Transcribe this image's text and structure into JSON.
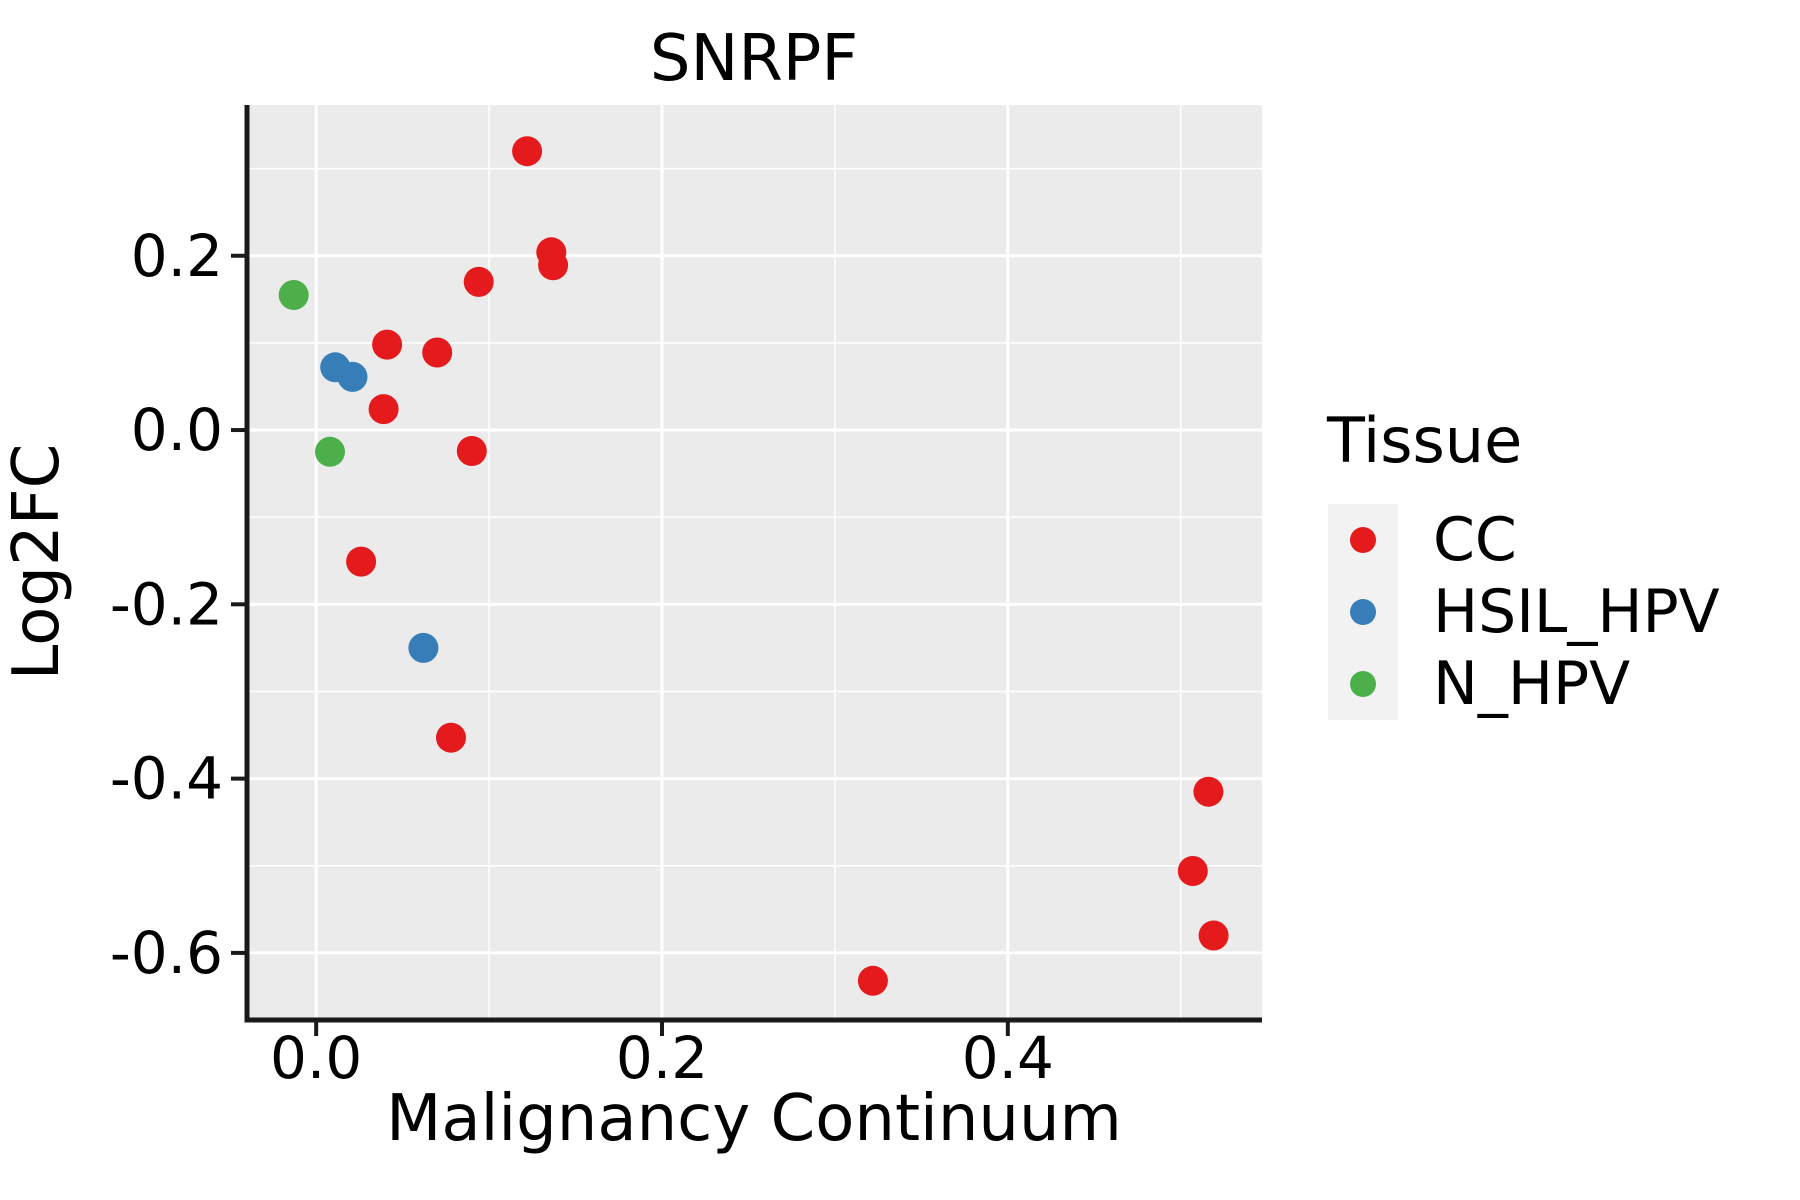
{
  "figure": {
    "title": "SNRPF"
  },
  "chart_data": {
    "type": "scatter",
    "title": "SNRPF",
    "xlabel": "Malignancy Continuum",
    "ylabel": "Log2FC",
    "xlim": [
      -0.04,
      0.547
    ],
    "ylim": [
      -0.677,
      0.373
    ],
    "x_ticks": {
      "values": [
        0.0,
        0.2,
        0.4
      ],
      "labels": [
        "0.0",
        "0.2",
        "0.4"
      ]
    },
    "y_ticks": {
      "values": [
        0.2,
        0.0,
        -0.2,
        -0.4,
        -0.6
      ],
      "labels": [
        "0.2",
        "0.0",
        "-0.2",
        "-0.4",
        "-0.6"
      ]
    },
    "x_minor": [
      0.1,
      0.3,
      0.5
    ],
    "y_minor": [
      0.3,
      0.1,
      -0.1,
      -0.3,
      -0.5
    ],
    "grid": true,
    "legend": {
      "title": "Tissue",
      "position": "right"
    },
    "series": [
      {
        "name": "CC",
        "color": "#E41A1C",
        "points": [
          [
            0.122,
            0.32
          ],
          [
            0.136,
            0.204
          ],
          [
            0.137,
            0.189
          ],
          [
            0.094,
            0.17
          ],
          [
            0.041,
            0.098
          ],
          [
            0.07,
            0.089
          ],
          [
            0.039,
            0.024
          ],
          [
            0.09,
            -0.024
          ],
          [
            0.026,
            -0.151
          ],
          [
            0.078,
            -0.353
          ],
          [
            0.322,
            -0.632
          ],
          [
            0.516,
            -0.415
          ],
          [
            0.507,
            -0.506
          ],
          [
            0.519,
            -0.58
          ]
        ]
      },
      {
        "name": "HSIL_HPV",
        "color": "#377EB8",
        "points": [
          [
            0.011,
            0.072
          ],
          [
            0.021,
            0.061
          ],
          [
            0.062,
            -0.25
          ]
        ]
      },
      {
        "name": "N_HPV",
        "color": "#4DAF4A",
        "points": [
          [
            -0.013,
            0.155
          ],
          [
            0.008,
            -0.025
          ]
        ]
      }
    ],
    "style": {
      "panel_bg": "#EBEBEB",
      "grid_color": "#FFFFFF",
      "legend_key_bg": "#F2F2F2",
      "text_color": "#000000",
      "spine_color": "#1a1a1a",
      "point_radius": 15
    }
  }
}
